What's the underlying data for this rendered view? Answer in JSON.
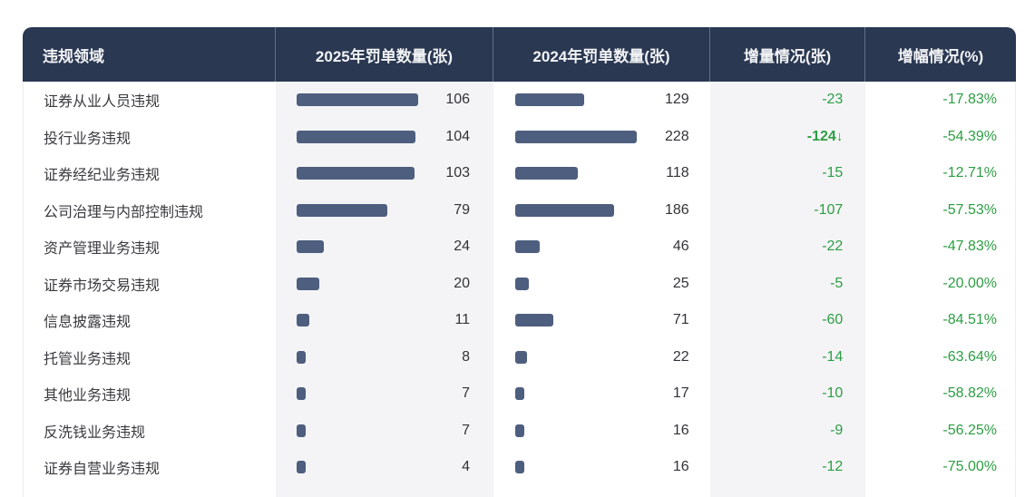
{
  "table": {
    "headers": [
      "违规领域",
      "2025年罚单数量(张)",
      "2024年罚单数量(张)",
      "增量情况(张)",
      "增幅情况(%)"
    ],
    "rows": [
      {
        "area": "证券从业人员违规",
        "count_2025": 106,
        "count_2024": 129,
        "delta": "-23",
        "delta_arrow": "",
        "delta_bold": false,
        "pct": "-17.83%"
      },
      {
        "area": "投行业务违规",
        "count_2025": 104,
        "count_2024": 228,
        "delta": "-124",
        "delta_arrow": "↓",
        "delta_bold": true,
        "pct": "-54.39%"
      },
      {
        "area": "证券经纪业务违规",
        "count_2025": 103,
        "count_2024": 118,
        "delta": "-15",
        "delta_arrow": "",
        "delta_bold": false,
        "pct": "-12.71%"
      },
      {
        "area": "公司治理与内部控制违规",
        "count_2025": 79,
        "count_2024": 186,
        "delta": "-107",
        "delta_arrow": "",
        "delta_bold": false,
        "pct": "-57.53%"
      },
      {
        "area": "资产管理业务违规",
        "count_2025": 24,
        "count_2024": 46,
        "delta": "-22",
        "delta_arrow": "",
        "delta_bold": false,
        "pct": "-47.83%"
      },
      {
        "area": "证券市场交易违规",
        "count_2025": 20,
        "count_2024": 25,
        "delta": "-5",
        "delta_arrow": "",
        "delta_bold": false,
        "pct": "-20.00%"
      },
      {
        "area": "信息披露违规",
        "count_2025": 11,
        "count_2024": 71,
        "delta": "-60",
        "delta_arrow": "",
        "delta_bold": false,
        "pct": "-84.51%"
      },
      {
        "area": "托管业务违规",
        "count_2025": 8,
        "count_2024": 22,
        "delta": "-14",
        "delta_arrow": "",
        "delta_bold": false,
        "pct": "-63.64%"
      },
      {
        "area": "其他业务违规",
        "count_2025": 7,
        "count_2024": 17,
        "delta": "-10",
        "delta_arrow": "",
        "delta_bold": false,
        "pct": "-58.82%"
      },
      {
        "area": "反洗钱业务违规",
        "count_2025": 7,
        "count_2024": 16,
        "delta": "-9",
        "delta_arrow": "",
        "delta_bold": false,
        "pct": "-56.25%"
      },
      {
        "area": "证券自营业务违规",
        "count_2025": 4,
        "count_2024": 16,
        "delta": "-12",
        "delta_arrow": "",
        "delta_bold": false,
        "pct": "-75.00%"
      }
    ]
  },
  "colors": {
    "header_bg": "#2a3852",
    "header_text": "#f2f3f5",
    "bar_fill": "#4e5e7e",
    "column_band_bg": "#f4f4f6",
    "negative_green": "#2c9e43",
    "label_text": "#3a3b3f",
    "number_text": "#323337"
  },
  "chart_data": {
    "type": "bar",
    "title": "",
    "categories": [
      "证券从业人员违规",
      "投行业务违规",
      "证券经纪业务违规",
      "公司治理与内部控制违规",
      "资产管理业务违规",
      "证券市场交易违规",
      "信息披露违规",
      "托管业务违规",
      "其他业务违规",
      "反洗钱业务违规",
      "证券自营业务违规"
    ],
    "series": [
      {
        "name": "2025年罚单数量(张)",
        "values": [
          106,
          104,
          103,
          79,
          24,
          20,
          11,
          8,
          7,
          7,
          4
        ]
      },
      {
        "name": "2024年罚单数量(张)",
        "values": [
          129,
          228,
          118,
          186,
          46,
          25,
          71,
          22,
          17,
          16,
          16
        ]
      }
    ],
    "delta_values": [
      -23,
      -124,
      -15,
      -107,
      -22,
      -5,
      -60,
      -14,
      -10,
      -9,
      -12
    ],
    "delta_pct_labels": [
      "-17.83%",
      "-54.39%",
      "-12.71%",
      "-57.53%",
      "-47.83%",
      "-20.00%",
      "-84.51%",
      "-63.64%",
      "-58.82%",
      "-56.25%",
      "-75.00%"
    ],
    "orientation": "horizontal",
    "bar_scaling": "per-column-max",
    "legend_position": "header-row",
    "grid": false
  }
}
